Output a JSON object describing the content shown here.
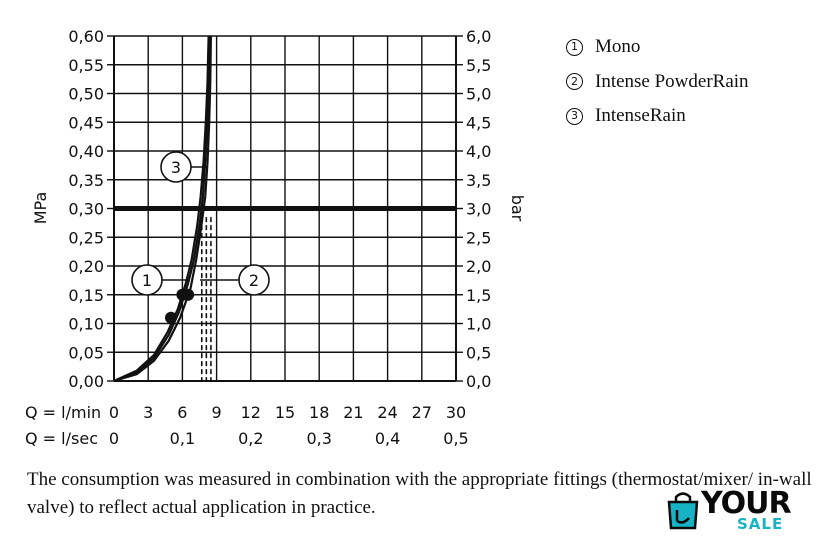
{
  "chart_data": {
    "type": "line",
    "ylabel_left": "MPa",
    "ylabel_right": "bar",
    "y_left_ticks": [
      "0,00",
      "0,05",
      "0,10",
      "0,15",
      "0,20",
      "0,25",
      "0,30",
      "0,35",
      "0,40",
      "0,45",
      "0,50",
      "0,55",
      "0,60"
    ],
    "y_right_ticks": [
      "0,0",
      "0,5",
      "1,0",
      "1,5",
      "2,0",
      "2,5",
      "3,0",
      "3,5",
      "4,0",
      "4,5",
      "5,0",
      "5,5",
      "6,0"
    ],
    "x_row1_label": "Q = l/min",
    "x_row1_ticks": [
      "0",
      "3",
      "6",
      "9",
      "12",
      "15",
      "18",
      "21",
      "24",
      "27",
      "30"
    ],
    "x_row2_label": "Q = l/sec",
    "x_row2_ticks": [
      "0",
      "0,1",
      "0,2",
      "0,3",
      "0,4",
      "0,5"
    ],
    "x_range": [
      0,
      30
    ],
    "y_range": [
      0,
      0.6
    ],
    "reference_pressure": 0.3,
    "grid": true,
    "callouts": [
      "1",
      "2",
      "3"
    ],
    "series": [
      {
        "name": "Mono",
        "marker": "1",
        "points": [
          [
            0,
            0
          ],
          [
            2,
            0.015
          ],
          [
            3.5,
            0.04
          ],
          [
            4.8,
            0.08
          ],
          [
            5.7,
            0.12
          ],
          [
            6.5,
            0.17
          ],
          [
            7.0,
            0.21
          ],
          [
            7.5,
            0.27
          ],
          [
            7.8,
            0.32
          ],
          [
            8.0,
            0.38
          ],
          [
            8.2,
            0.45
          ],
          [
            8.3,
            0.52
          ],
          [
            8.4,
            0.6
          ]
        ],
        "dot": [
          5,
          0.11
        ]
      },
      {
        "name": "Intense PowderRain",
        "marker": "2",
        "points": [
          [
            0,
            0
          ],
          [
            2,
            0.012
          ],
          [
            3.5,
            0.035
          ],
          [
            4.8,
            0.07
          ],
          [
            5.8,
            0.11
          ],
          [
            6.7,
            0.16
          ],
          [
            7.2,
            0.21
          ],
          [
            7.6,
            0.26
          ],
          [
            8.0,
            0.32
          ],
          [
            8.2,
            0.38
          ],
          [
            8.35,
            0.45
          ],
          [
            8.45,
            0.52
          ],
          [
            8.5,
            0.6
          ]
        ],
        "dot": [
          6.5,
          0.15
        ]
      },
      {
        "name": "IntenseRain",
        "marker": "3",
        "points": [
          [
            0,
            0
          ],
          [
            2,
            0.018
          ],
          [
            3.5,
            0.045
          ],
          [
            4.7,
            0.085
          ],
          [
            5.6,
            0.125
          ],
          [
            6.3,
            0.17
          ],
          [
            6.8,
            0.21
          ],
          [
            7.3,
            0.27
          ],
          [
            7.6,
            0.32
          ],
          [
            7.85,
            0.38
          ],
          [
            8.05,
            0.45
          ],
          [
            8.2,
            0.52
          ],
          [
            8.3,
            0.6
          ]
        ],
        "dot": [
          6.0,
          0.15
        ]
      }
    ],
    "dashed_x": [
      7.7,
      8.1,
      8.5
    ],
    "legend_position": "top-right"
  },
  "legend": [
    {
      "marker": "①",
      "label": "Mono"
    },
    {
      "marker": "②",
      "label": "Intense PowderRain"
    },
    {
      "marker": "③",
      "label": "IntenseRain"
    }
  ],
  "note": "The consumption was measured in combination with the appropriate fittings (thermostat/mixer/ in-wall valve) to reflect actual application in practice.",
  "logo": {
    "word": "YOUR",
    "sub": "SALE",
    "accent": "#17b3c4"
  }
}
